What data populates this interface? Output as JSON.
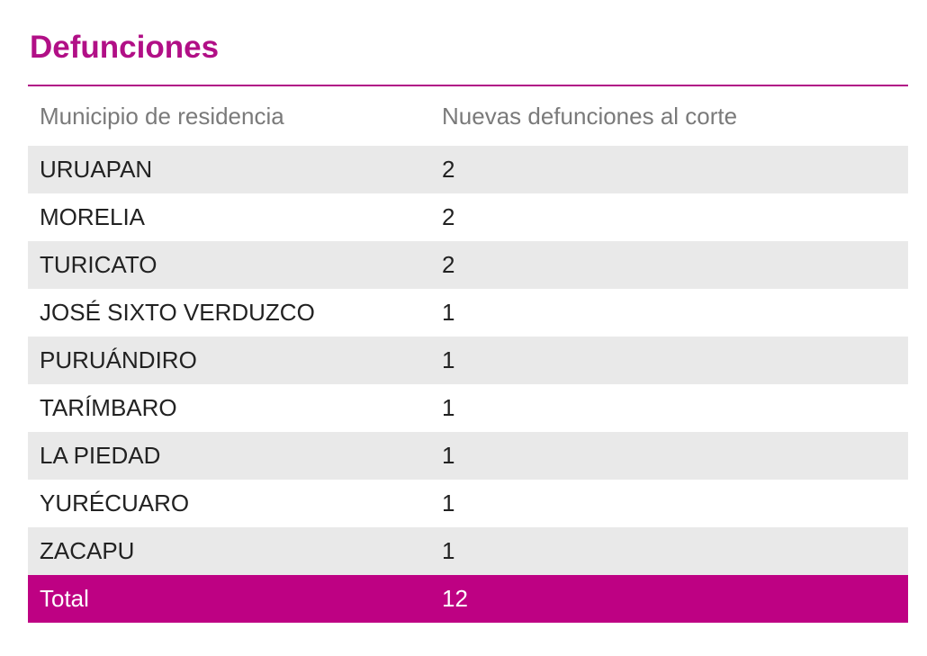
{
  "section": {
    "title": "Defunciones"
  },
  "table": {
    "headers": [
      "Municipio de residencia",
      "Nuevas defunciones al corte"
    ],
    "rows": [
      {
        "municipio": "URUAPAN",
        "value": "2"
      },
      {
        "municipio": "MORELIA",
        "value": "2"
      },
      {
        "municipio": "TURICATO",
        "value": "2"
      },
      {
        "municipio": "JOSÉ SIXTO VERDUZCO",
        "value": "1"
      },
      {
        "municipio": "PURUÁNDIRO",
        "value": "1"
      },
      {
        "municipio": "TARÍMBARO",
        "value": "1"
      },
      {
        "municipio": "LA PIEDAD",
        "value": "1"
      },
      {
        "municipio": "YURÉCUARO",
        "value": "1"
      },
      {
        "municipio": "ZACAPU",
        "value": "1"
      }
    ],
    "total": {
      "label": "Total",
      "value": "12"
    }
  },
  "colors": {
    "accent": "#b10f86",
    "total_row": "#be0183",
    "stripe": "#e9e9e9",
    "header_text": "#7a7a7a"
  }
}
